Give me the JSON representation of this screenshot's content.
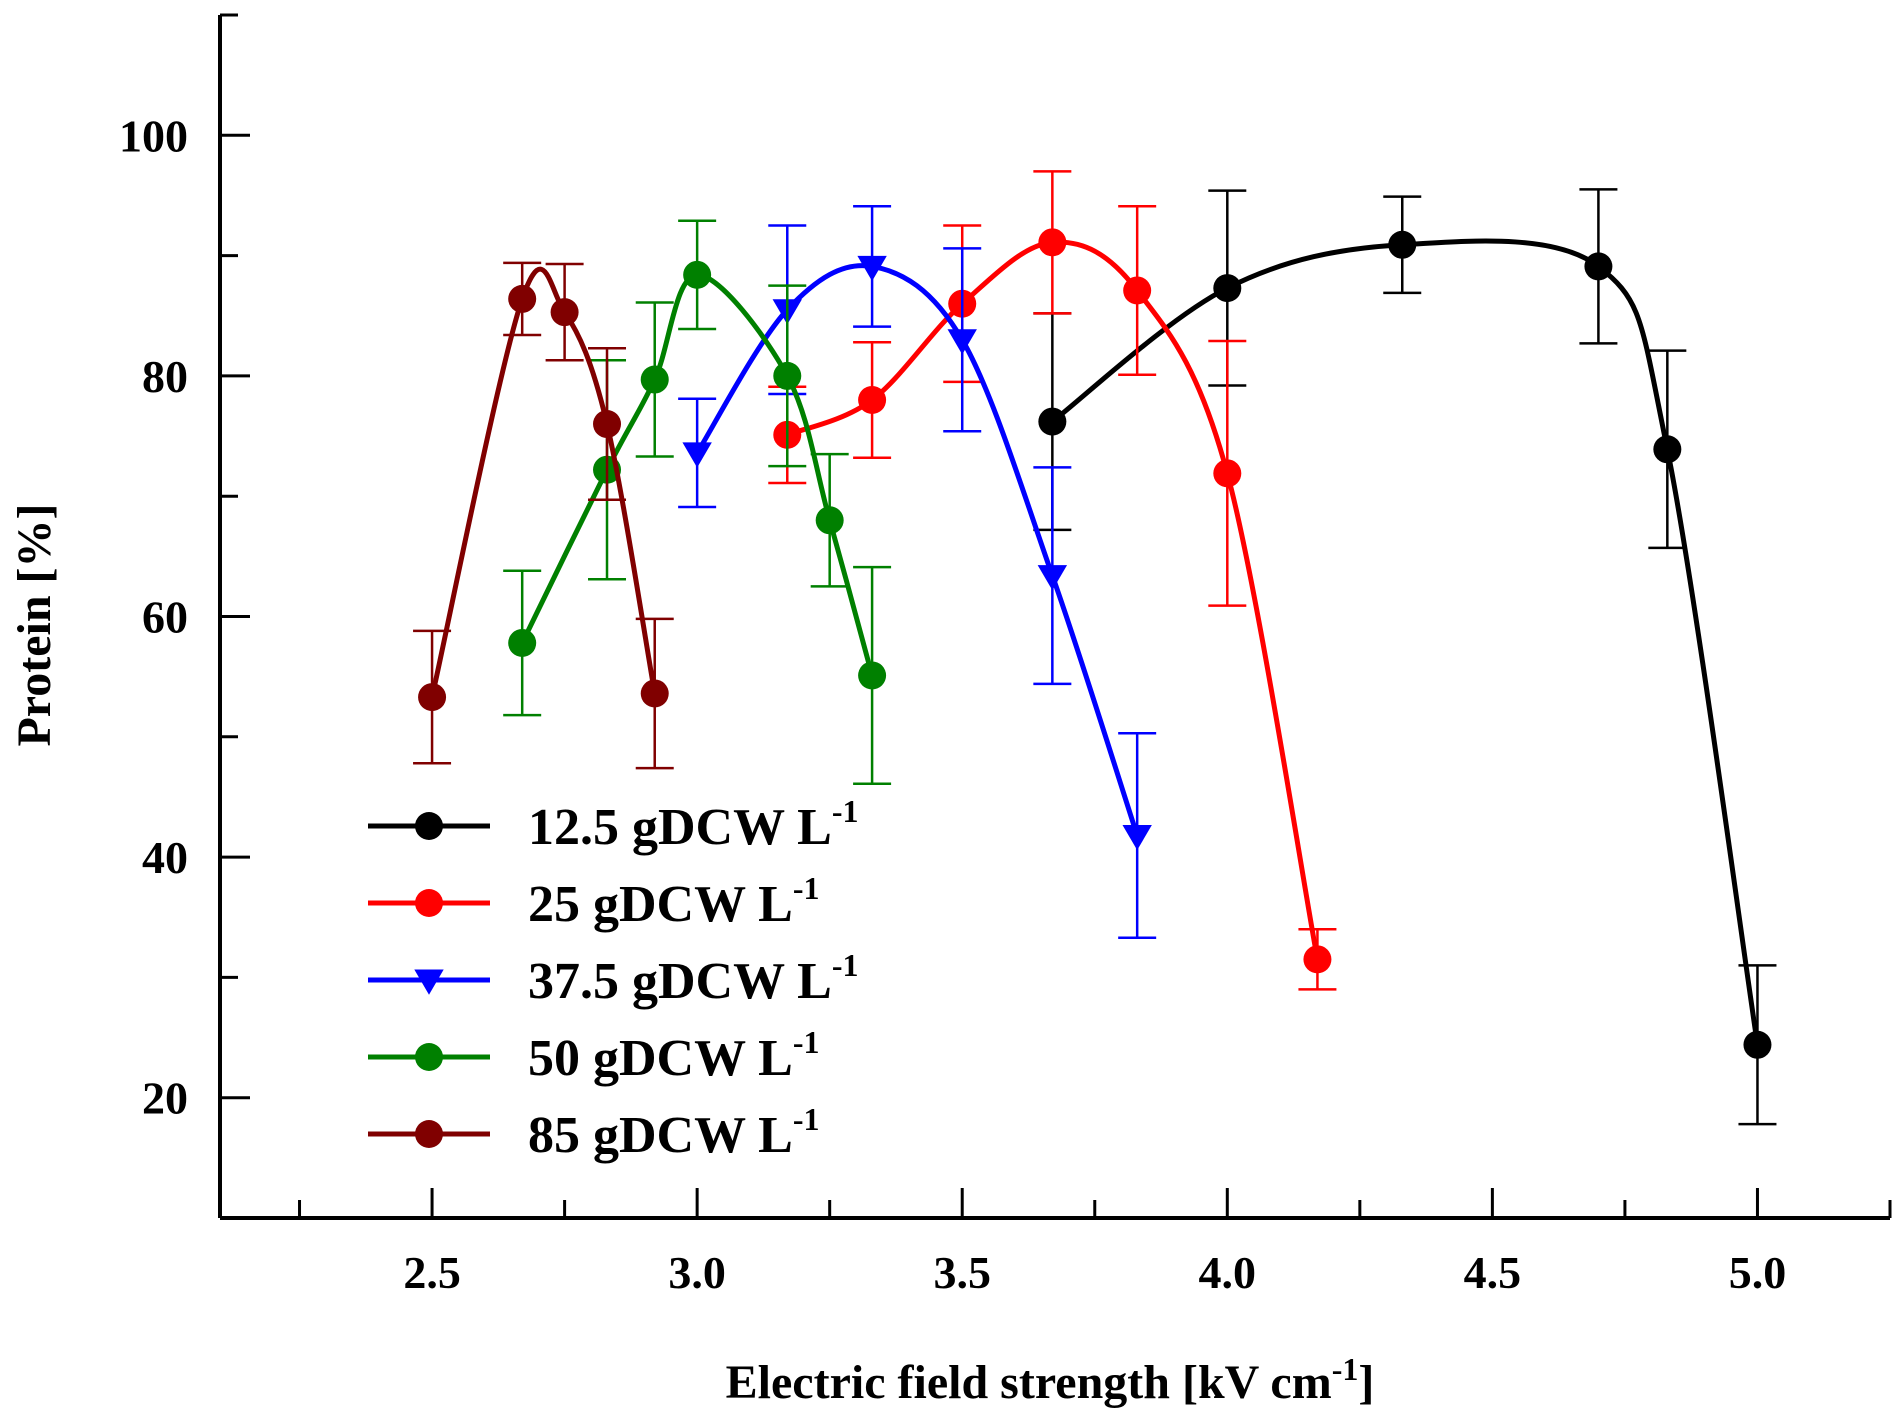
{
  "chart_data": {
    "type": "line",
    "xlabel": {
      "main": "Electric field strength [kV cm",
      "sup": "-1",
      "close": "]"
    },
    "ylabel": "Protein [%]",
    "xlim": [
      2.1,
      5.25
    ],
    "ylim": [
      10,
      110
    ],
    "x_ticks": [
      2.5,
      3.0,
      3.5,
      4.0,
      4.5,
      5.0
    ],
    "x_tick_labels": [
      "2.5",
      "3.0",
      "3.5",
      "4.0",
      "4.5",
      "5.0"
    ],
    "y_ticks": [
      20,
      40,
      60,
      80,
      100
    ],
    "y_tick_labels": [
      "20",
      "40",
      "60",
      "80",
      "100"
    ],
    "series": [
      {
        "name": "12.5 gDCW L",
        "sup": "-1",
        "color": "#000000",
        "marker": "circle",
        "x": [
          3.67,
          4.0,
          4.33,
          4.7,
          4.83,
          5.0
        ],
        "y": [
          76.2,
          87.3,
          90.9,
          89.1,
          73.9,
          24.4
        ],
        "err": [
          9.0,
          8.1,
          4.0,
          6.4,
          8.2,
          6.6
        ]
      },
      {
        "name": "25 gDCW L",
        "sup": "-1",
        "color": "#ff0000",
        "marker": "circle",
        "x": [
          3.17,
          3.33,
          3.5,
          3.67,
          3.83,
          4.0,
          4.17
        ],
        "y": [
          75.1,
          78.0,
          86.0,
          91.1,
          87.1,
          71.9,
          31.5
        ],
        "err": [
          4.0,
          4.8,
          6.5,
          5.9,
          7.0,
          11.0,
          2.5
        ]
      },
      {
        "name": "37.5 gDCW L",
        "sup": "-1",
        "color": "#0000ff",
        "marker": "triangle-down",
        "x": [
          3.0,
          3.17,
          3.33,
          3.5,
          3.67,
          3.83
        ],
        "y": [
          73.6,
          85.5,
          89.1,
          83.0,
          63.4,
          41.8
        ],
        "err": [
          4.5,
          7.0,
          5.0,
          7.6,
          9.0,
          8.5
        ]
      },
      {
        "name": "50 gDCW L",
        "sup": "-1",
        "color": "#008000",
        "marker": "circle",
        "x": [
          2.67,
          2.83,
          2.92,
          3.0,
          3.17,
          3.25,
          3.33
        ],
        "y": [
          57.8,
          72.2,
          79.7,
          88.4,
          80.0,
          68.0,
          55.1
        ],
        "err": [
          6.0,
          9.1,
          6.4,
          4.5,
          7.5,
          5.5,
          9.0
        ]
      },
      {
        "name": "85 gDCW L",
        "sup": "-1",
        "color": "#800000",
        "marker": "circle",
        "x": [
          2.5,
          2.67,
          2.75,
          2.83,
          2.92
        ],
        "y": [
          53.3,
          86.4,
          85.3,
          76.0,
          53.6
        ],
        "err": [
          5.5,
          3.0,
          4.0,
          6.3,
          6.2
        ]
      }
    ]
  }
}
